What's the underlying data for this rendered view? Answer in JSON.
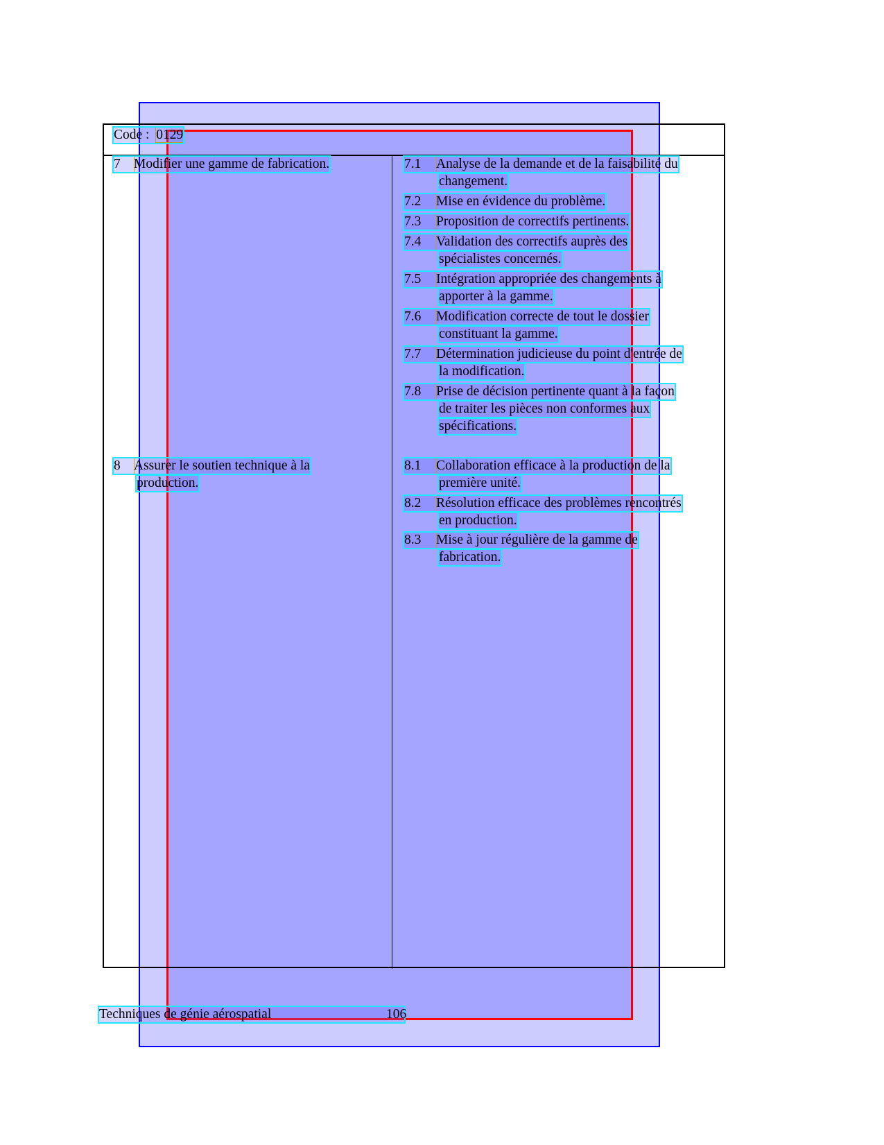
{
  "code": {
    "label": "Code :",
    "value": "0129"
  },
  "left_items": [
    {
      "number": "7",
      "lines": [
        "Modifier une gamme de fabrication."
      ]
    },
    {
      "number": "8",
      "lines": [
        "Assurer le soutien technique à la",
        "production."
      ]
    }
  ],
  "right_items": [
    {
      "number": "7.1",
      "lines": [
        "Analyse de la demande et de la faisabilité du",
        "changement."
      ]
    },
    {
      "number": "7.2",
      "lines": [
        "Mise en évidence du problème."
      ]
    },
    {
      "number": "7.3",
      "lines": [
        "Proposition de correctifs pertinents."
      ]
    },
    {
      "number": "7.4",
      "lines": [
        "Validation des correctifs auprès des",
        "spécialistes concernés."
      ]
    },
    {
      "number": "7.5",
      "lines": [
        "Intégration appropriée des changements à",
        "apporter à la gamme."
      ]
    },
    {
      "number": "7.6",
      "lines": [
        "Modification correcte de tout le dossier",
        "constituant la gamme."
      ]
    },
    {
      "number": "7.7",
      "lines": [
        "Détermination judicieuse du point d'entrée de",
        "la modification."
      ]
    },
    {
      "number": "7.8",
      "lines": [
        "Prise de décision pertinente quant à la façon",
        "de traiter les pièces non conformes aux",
        "spécifications."
      ]
    },
    {
      "number": "8.1",
      "lines": [
        "Collaboration efficace à la production de la",
        "première unité."
      ]
    },
    {
      "number": "8.2",
      "lines": [
        "Résolution efficace des problèmes rencontrés",
        "en production."
      ]
    },
    {
      "number": "8.3",
      "lines": [
        "Mise à jour régulière de la gamme de",
        "fabrication."
      ]
    }
  ],
  "footer": {
    "title": "Techniques de génie aérospatial",
    "page": "106"
  },
  "colors": {
    "outer_region": "#ccccff",
    "inner_region": "#a5a5ff",
    "outer_border": "#0000ff",
    "inner_border": "#ff0000",
    "text_box": "#22e6ff"
  }
}
